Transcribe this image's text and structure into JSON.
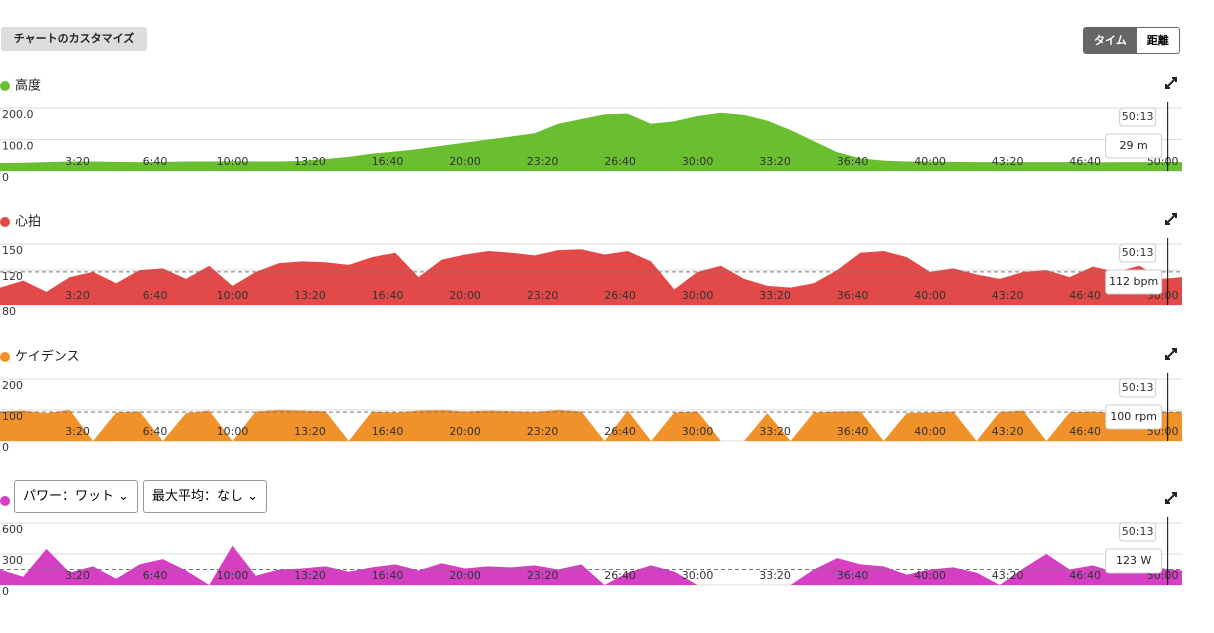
{
  "header": {
    "customize_button": "チャートのカスタマイズ",
    "toggle": [
      "タイム",
      "距離"
    ]
  },
  "chart_data": [
    {
      "type": "area",
      "title": "高度",
      "color": "#6abf31",
      "x": [
        0,
        60,
        120,
        180,
        240,
        300,
        360,
        420,
        480,
        540,
        600,
        660,
        720,
        780,
        840,
        900,
        960,
        1020,
        1080,
        1140,
        1200,
        1260,
        1320,
        1380,
        1440,
        1500,
        1560,
        1620,
        1680,
        1740,
        1800,
        1860,
        1920,
        1980,
        2040,
        2100,
        2160,
        2220,
        2280,
        2340,
        2400,
        2460,
        2520,
        2580,
        2640,
        2700,
        2760,
        2820,
        2880,
        2940,
        3000,
        3050
      ],
      "values": [
        25,
        26,
        28,
        30,
        30,
        29,
        28,
        29,
        30,
        30,
        31,
        30,
        30,
        32,
        38,
        45,
        55,
        62,
        70,
        80,
        90,
        100,
        110,
        120,
        150,
        165,
        180,
        182,
        150,
        158,
        175,
        185,
        178,
        160,
        130,
        95,
        60,
        40,
        33,
        30,
        30,
        29,
        28,
        28,
        28,
        28,
        28,
        27,
        28,
        28,
        29,
        28
      ],
      "xlim": [
        0,
        3050
      ],
      "ylim": [
        0,
        200
      ],
      "xticks": [
        {
          "value": 200,
          "label": "3:20"
        },
        {
          "value": 400,
          "label": "6:40"
        },
        {
          "value": 600,
          "label": "10:00"
        },
        {
          "value": 800,
          "label": "13:20"
        },
        {
          "value": 1000,
          "label": "16:40"
        },
        {
          "value": 1200,
          "label": "20:00"
        },
        {
          "value": 1400,
          "label": "23:20"
        },
        {
          "value": 1600,
          "label": "26:40"
        },
        {
          "value": 1800,
          "label": "30:00"
        },
        {
          "value": 2000,
          "label": "33:20"
        },
        {
          "value": 2200,
          "label": "36:40"
        },
        {
          "value": 2400,
          "label": "40:00"
        },
        {
          "value": 2600,
          "label": "43:20"
        },
        {
          "value": 2800,
          "label": "46:40"
        },
        {
          "value": 3000,
          "label": "50:00"
        }
      ],
      "yticks": [
        0,
        {
          "value": 100,
          "label": "100.0"
        },
        {
          "value": 200,
          "label": "200.0"
        }
      ],
      "cursor": {
        "value": 3013,
        "label": "50:13"
      },
      "readout": "29 m"
    },
    {
      "type": "area",
      "title": "心拍",
      "color": "#e24a4a",
      "x": [
        0,
        60,
        120,
        180,
        240,
        300,
        360,
        420,
        480,
        540,
        600,
        660,
        720,
        780,
        840,
        900,
        960,
        1020,
        1080,
        1140,
        1200,
        1260,
        1320,
        1380,
        1440,
        1500,
        1560,
        1620,
        1680,
        1740,
        1800,
        1860,
        1920,
        1980,
        2040,
        2100,
        2160,
        2220,
        2280,
        2340,
        2400,
        2460,
        2520,
        2580,
        2640,
        2700,
        2760,
        2820,
        2880,
        2940,
        3000,
        3050
      ],
      "values": [
        100,
        108,
        95,
        112,
        118,
        105,
        120,
        122,
        110,
        125,
        102,
        118,
        128,
        130,
        129,
        126,
        135,
        140,
        112,
        132,
        138,
        142,
        140,
        137,
        143,
        144,
        138,
        142,
        130,
        98,
        118,
        125,
        110,
        102,
        100,
        105,
        120,
        140,
        142,
        135,
        118,
        122,
        115,
        110,
        118,
        120,
        112,
        124,
        118,
        125,
        110,
        112
      ],
      "xlim": [
        0,
        3050
      ],
      "ylim": [
        80,
        150
      ],
      "xticks": [
        {
          "value": 200,
          "label": "3:20"
        },
        {
          "value": 400,
          "label": "6:40"
        },
        {
          "value": 600,
          "label": "10:00"
        },
        {
          "value": 800,
          "label": "13:20"
        },
        {
          "value": 1000,
          "label": "16:40"
        },
        {
          "value": 1200,
          "label": "20:00"
        },
        {
          "value": 1400,
          "label": "23:20"
        },
        {
          "value": 1600,
          "label": "26:40"
        },
        {
          "value": 1800,
          "label": "30:00"
        },
        {
          "value": 2000,
          "label": "33:20"
        },
        {
          "value": 2200,
          "label": "36:40"
        },
        {
          "value": 2400,
          "label": "40:00"
        },
        {
          "value": 2600,
          "label": "43:20"
        },
        {
          "value": 2800,
          "label": "46:40"
        },
        {
          "value": 3000,
          "label": "50:00"
        }
      ],
      "yticks": [
        80,
        120,
        150
      ],
      "average": 118,
      "cursor": {
        "value": 3013,
        "label": "50:13"
      },
      "readout": "112 bpm"
    },
    {
      "type": "area",
      "title": "ケイデンス",
      "color": "#f0912a",
      "x": [
        0,
        60,
        120,
        180,
        240,
        300,
        360,
        420,
        480,
        540,
        600,
        660,
        720,
        780,
        840,
        900,
        960,
        1020,
        1080,
        1140,
        1200,
        1260,
        1320,
        1380,
        1440,
        1500,
        1560,
        1620,
        1680,
        1740,
        1800,
        1860,
        1920,
        1980,
        2040,
        2100,
        2160,
        2220,
        2280,
        2340,
        2400,
        2460,
        2520,
        2580,
        2640,
        2700,
        2760,
        2820,
        2880,
        2940,
        3000,
        3050
      ],
      "values": [
        95,
        98,
        90,
        100,
        0,
        92,
        95,
        0,
        90,
        98,
        0,
        95,
        100,
        98,
        96,
        0,
        95,
        92,
        98,
        100,
        95,
        98,
        96,
        94,
        100,
        95,
        0,
        98,
        0,
        92,
        95,
        0,
        0,
        90,
        0,
        92,
        95,
        96,
        0,
        90,
        92,
        95,
        0,
        94,
        98,
        0,
        92,
        95,
        90,
        98,
        92,
        95
      ],
      "xlim": [
        0,
        3050
      ],
      "ylim": [
        0,
        200
      ],
      "xticks": [
        {
          "value": 200,
          "label": "3:20"
        },
        {
          "value": 400,
          "label": "6:40"
        },
        {
          "value": 600,
          "label": "10:00"
        },
        {
          "value": 800,
          "label": "13:20"
        },
        {
          "value": 1000,
          "label": "16:40"
        },
        {
          "value": 1200,
          "label": "20:00"
        },
        {
          "value": 1400,
          "label": "23:20"
        },
        {
          "value": 1600,
          "label": "26:40"
        },
        {
          "value": 1800,
          "label": "30:00"
        },
        {
          "value": 2000,
          "label": "33:20"
        },
        {
          "value": 2200,
          "label": "36:40"
        },
        {
          "value": 2400,
          "label": "40:00"
        },
        {
          "value": 2600,
          "label": "43:20"
        },
        {
          "value": 2800,
          "label": "46:40"
        },
        {
          "value": 3000,
          "label": "50:00"
        }
      ],
      "yticks": [
        0,
        100,
        200
      ],
      "average": 93,
      "cursor": {
        "value": 3013,
        "label": "50:13"
      },
      "readout": "100 rpm"
    },
    {
      "type": "area",
      "dropdowns": [
        "パワー：ワット",
        "最大平均：なし"
      ],
      "color": "#d63fc4",
      "x": [
        0,
        60,
        120,
        180,
        240,
        300,
        360,
        420,
        480,
        540,
        600,
        660,
        720,
        780,
        840,
        900,
        960,
        1020,
        1080,
        1140,
        1200,
        1260,
        1320,
        1380,
        1440,
        1500,
        1560,
        1620,
        1680,
        1740,
        1800,
        1860,
        1920,
        1980,
        2040,
        2100,
        2160,
        2220,
        2280,
        2340,
        2400,
        2460,
        2520,
        2580,
        2640,
        2700,
        2760,
        2820,
        2880,
        2940,
        3000,
        3050
      ],
      "values": [
        150,
        80,
        350,
        120,
        180,
        60,
        200,
        250,
        140,
        0,
        380,
        90,
        150,
        160,
        180,
        130,
        170,
        200,
        140,
        210,
        160,
        180,
        170,
        190,
        150,
        200,
        0,
        120,
        190,
        130,
        0,
        0,
        0,
        0,
        0,
        150,
        260,
        200,
        180,
        100,
        150,
        170,
        120,
        0,
        160,
        300,
        150,
        190,
        120,
        300,
        160,
        140
      ],
      "xlim": [
        0,
        3050
      ],
      "ylim": [
        0,
        600
      ],
      "xticks": [
        {
          "value": 200,
          "label": "3:20"
        },
        {
          "value": 400,
          "label": "6:40"
        },
        {
          "value": 600,
          "label": "10:00"
        },
        {
          "value": 800,
          "label": "13:20"
        },
        {
          "value": 1000,
          "label": "16:40"
        },
        {
          "value": 1200,
          "label": "20:00"
        },
        {
          "value": 1400,
          "label": "23:20"
        },
        {
          "value": 1600,
          "label": "26:40"
        },
        {
          "value": 1800,
          "label": "30:00"
        },
        {
          "value": 2000,
          "label": "33:20"
        },
        {
          "value": 2200,
          "label": "36:40"
        },
        {
          "value": 2400,
          "label": "40:00"
        },
        {
          "value": 2600,
          "label": "43:20"
        },
        {
          "value": 2800,
          "label": "46:40"
        },
        {
          "value": 3000,
          "label": "50:00"
        }
      ],
      "yticks": [
        0,
        300,
        600
      ],
      "average": 150,
      "cursor": {
        "value": 3013,
        "label": "50:13"
      },
      "readout": "123 W"
    }
  ]
}
